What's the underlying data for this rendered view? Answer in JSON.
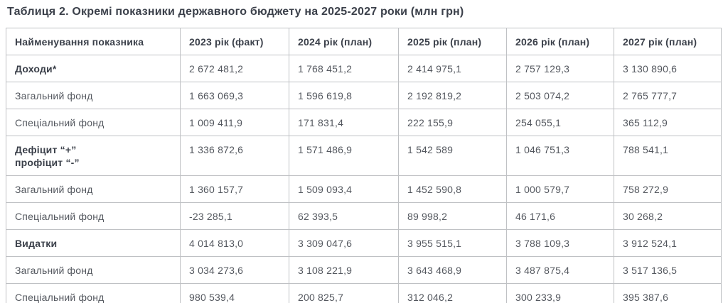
{
  "title": "Таблиця 2. Окремі показники державного бюджету на 2025-2027 роки (млн грн)",
  "table": {
    "columns": [
      "Найменування показника",
      "2023 рік (факт)",
      "2024 рік (план)",
      "2025 рік (план)",
      "2026 рік (план)",
      "2027 рік (план)"
    ],
    "rows": [
      {
        "label": "Доходи*",
        "bold": true,
        "values": [
          "2 672 481,2",
          "1 768 451,2",
          "2 414 975,1",
          "2 757 129,3",
          "3 130 890,6"
        ]
      },
      {
        "label": "Загальний фонд",
        "bold": false,
        "values": [
          "1 663 069,3",
          "1 596 619,8",
          "2 192 819,2",
          "2 503 074,2",
          "2 765 777,7"
        ]
      },
      {
        "label": "Спеціальний фонд",
        "bold": false,
        "values": [
          "1 009 411,9",
          "171 831,4",
          "222 155,9",
          "254 055,1",
          "365 112,9"
        ]
      },
      {
        "label": "Дефіцит “+”\nпрофіцит “-”",
        "bold": true,
        "values": [
          "1 336 872,6",
          "1 571 486,9",
          "1 542 589",
          "1 046 751,3",
          "788 541,1"
        ]
      },
      {
        "label": "Загальний фонд",
        "bold": false,
        "values": [
          "1 360 157,7",
          "1 509 093,4",
          "1 452 590,8",
          "1 000 579,7",
          "758 272,9"
        ]
      },
      {
        "label": "Спеціальний фонд",
        "bold": false,
        "values": [
          "-23 285,1",
          "62 393,5",
          "89 998,2",
          "46 171,6",
          "30 268,2"
        ]
      },
      {
        "label": "Видатки",
        "bold": true,
        "values": [
          "4 014 813,0",
          "3 309 047,6",
          "3 955 515,1",
          "3 788 109,3",
          "3 912 524,1"
        ]
      },
      {
        "label": "Загальний фонд",
        "bold": false,
        "values": [
          "3 034 273,6",
          "3 108 221,9",
          "3 643 468,9",
          "3 487 875,4",
          "3 517 136,5"
        ]
      },
      {
        "label": "Спеціальний фонд",
        "bold": false,
        "values": [
          "980 539,4",
          "200 825,7",
          "312 046,2",
          "300 233,9",
          "395 387,6"
        ]
      }
    ]
  },
  "colors": {
    "heading_text": "#3b404a",
    "body_text": "#54585f",
    "border": "#bfc1c4",
    "background": "#ffffff"
  }
}
